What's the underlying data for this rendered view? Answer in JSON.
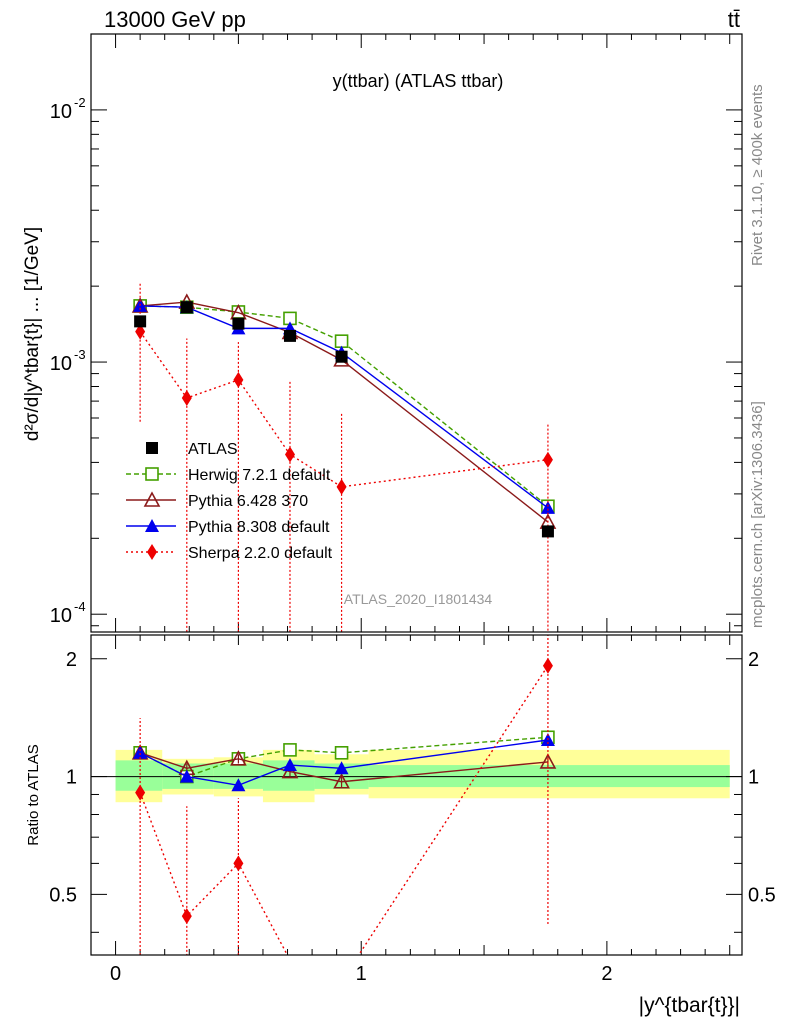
{
  "header": {
    "left": "13000 GeV pp",
    "right": "tt̄"
  },
  "side": {
    "rivet": "Rivet 3.1.10, ≥ 400k events",
    "mcplots": "mcplots.cern.ch [arXiv:1306.3436]"
  },
  "chart_data": {
    "type": "line",
    "title": "y(ttbar) (ATLAS ttbar)",
    "watermark": "ATLAS_2020_I1801434",
    "ylabel": "d²σ/d|y^tbar{t}| ... [1/GeV]",
    "ratio_ylabel": "Ratio to ATLAS",
    "xlabel": "|y^{tbar{t}}|",
    "xlim": [
      -0.1,
      2.55
    ],
    "ylim": [
      8.5e-05,
      0.02
    ],
    "yscale": "log",
    "ratio_ylim": [
      0.35,
      2.3
    ],
    "x_ticks": [
      "0",
      "1",
      "2"
    ],
    "y_ticks": [
      "10^{-4}",
      "10^{-3}",
      "10^{-2}"
    ],
    "ratio_ticks": [
      "0.5",
      "1",
      "2"
    ],
    "x": [
      0.1,
      0.29,
      0.5,
      0.71,
      0.92,
      1.76
    ],
    "bands": [
      {
        "x0": 0.0,
        "x1": 0.19,
        "g_lo": 0.92,
        "g_hi": 1.1,
        "y_lo": 0.86,
        "y_hi": 1.17
      },
      {
        "x0": 0.19,
        "x1": 0.4,
        "g_lo": 0.93,
        "g_hi": 1.08,
        "y_lo": 0.9,
        "y_hi": 1.11
      },
      {
        "x0": 0.4,
        "x1": 0.6,
        "g_lo": 0.93,
        "g_hi": 1.08,
        "y_lo": 0.89,
        "y_hi": 1.12
      },
      {
        "x0": 0.6,
        "x1": 0.81,
        "g_lo": 0.92,
        "g_hi": 1.1,
        "y_lo": 0.86,
        "y_hi": 1.17
      },
      {
        "x0": 0.81,
        "x1": 1.03,
        "g_lo": 0.93,
        "g_hi": 1.08,
        "y_lo": 0.9,
        "y_hi": 1.14
      },
      {
        "x0": 1.03,
        "x1": 2.5,
        "g_lo": 0.94,
        "g_hi": 1.07,
        "y_lo": 0.88,
        "y_hi": 1.17
      }
    ],
    "series": [
      {
        "name": "ATLAS",
        "color": "#000000",
        "marker": "square-filled",
        "dash": "none",
        "values": [
          0.00145,
          0.00165,
          0.00142,
          0.00127,
          0.00105,
          0.000213
        ],
        "ratio": [
          1.0,
          1.0,
          1.0,
          1.0,
          1.0,
          1.0
        ]
      },
      {
        "name": "Herwig 7.2.1 default",
        "color": "#44a000",
        "marker": "square-open",
        "dash": "5,3",
        "values": [
          0.00167,
          0.00165,
          0.00158,
          0.00149,
          0.00121,
          0.000268
        ],
        "ratio": [
          1.15,
          1.0,
          1.11,
          1.17,
          1.15,
          1.26
        ],
        "ratio_err": [
          0.03,
          0.03,
          0.03,
          0.03,
          0.03,
          0.03
        ]
      },
      {
        "name": "Pythia 6.428 370",
        "color": "#8b1a1a",
        "marker": "triangle-open",
        "dash": "none",
        "values": [
          0.00167,
          0.00173,
          0.00157,
          0.00131,
          0.00102,
          0.000232
        ],
        "ratio": [
          1.15,
          1.05,
          1.11,
          1.03,
          0.97,
          1.09
        ],
        "ratio_err": [
          0.03,
          0.03,
          0.03,
          0.03,
          0.03,
          0.03
        ]
      },
      {
        "name": "Pythia 8.308 default",
        "color": "#0000ee",
        "marker": "triangle-filled",
        "dash": "none",
        "values": [
          0.00167,
          0.00165,
          0.00136,
          0.00136,
          0.00109,
          0.000264
        ],
        "ratio": [
          1.15,
          1.0,
          0.95,
          1.07,
          1.05,
          1.24
        ],
        "ratio_err": [
          0.03,
          0.03,
          0.03,
          0.03,
          0.03,
          0.03
        ]
      },
      {
        "name": "Sherpa 2.2.0 default",
        "color": "#ee0000",
        "marker": "diamond-filled",
        "dash": "2,3",
        "values": [
          0.00132,
          0.00072,
          0.00085,
          0.00043,
          0.00032,
          0.00041
        ],
        "err_lo": [
          0.00074,
          0.0007,
          0.000845,
          0.00043,
          0.00032,
          0.00033
        ],
        "err_hi": [
          0.00076,
          0.00052,
          0.00035,
          0.00042,
          0.00031,
          0.00016
        ],
        "ratio": [
          0.91,
          0.44,
          0.6,
          0.34,
          0.3,
          1.92
        ],
        "ratio_err_lo": [
          0.56,
          0.1,
          0.25,
          0.0,
          0.0,
          1.5
        ],
        "ratio_err_hi": [
          0.5,
          0.4,
          0.28,
          0.0,
          0.0,
          0.6
        ]
      }
    ]
  }
}
